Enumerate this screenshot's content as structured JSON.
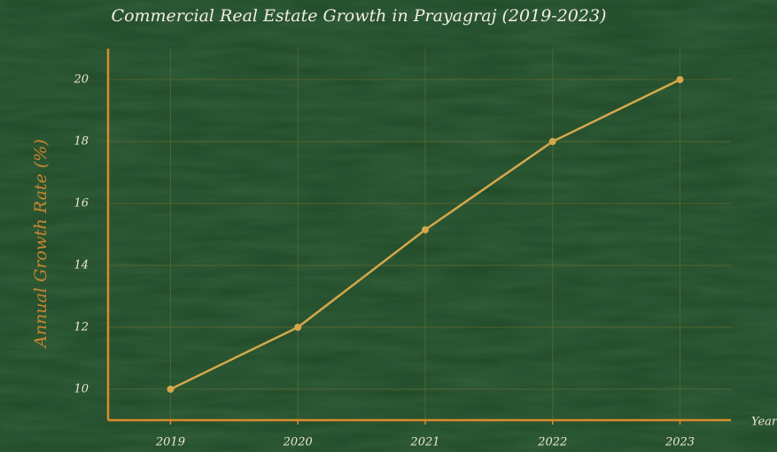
{
  "chart_data": {
    "type": "line",
    "title": "Commercial Real Estate Growth in Prayagraj (2019-2023)",
    "x_label": "Year",
    "y_label": "Annual Growth Rate (%)",
    "x": [
      2019,
      2020,
      2021,
      2022,
      2023
    ],
    "series": [
      {
        "name": "Annual Growth Rate",
        "color": "#d4a74c",
        "values": [
          10,
          12,
          15.15,
          18,
          20
        ]
      }
    ],
    "xlim": [
      2018.51,
      2023.4
    ],
    "xticks": [
      2019,
      2020,
      2021,
      2022,
      2023
    ],
    "ylim": [
      9,
      21
    ],
    "yticks": [
      10,
      12,
      14,
      16,
      18,
      20
    ],
    "grid": true,
    "axis_color": "#d98c2c",
    "label_color": "#c98630"
  }
}
